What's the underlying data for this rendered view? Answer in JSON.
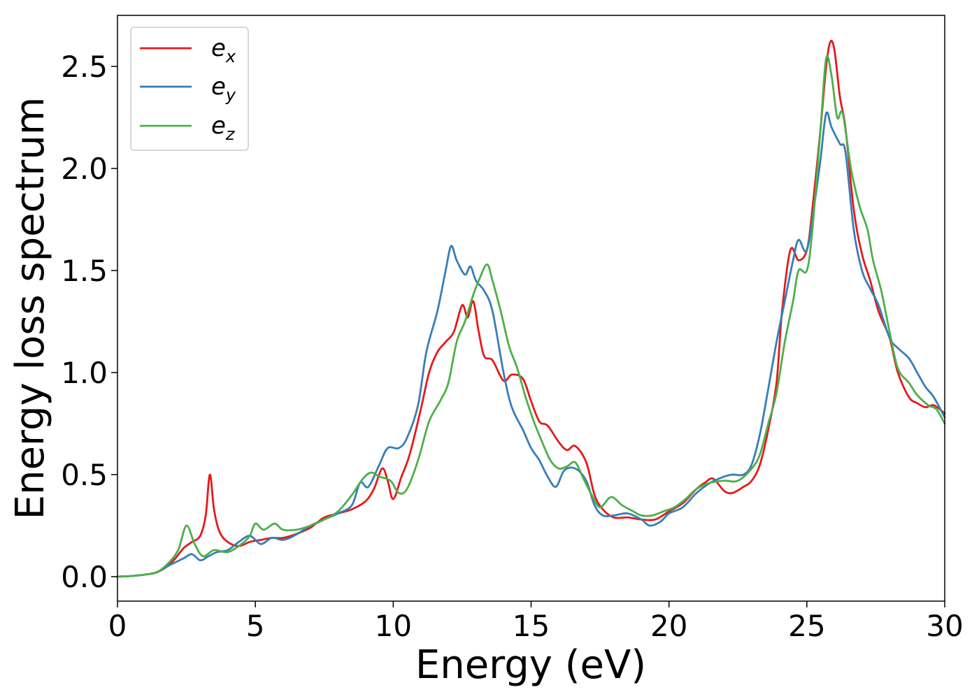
{
  "chart_data": {
    "type": "line",
    "title": "",
    "xlabel": "Energy (eV)",
    "ylabel": "Energy loss spectrum",
    "xlim": [
      0,
      30
    ],
    "ylim": [
      -0.12,
      2.75
    ],
    "xticks": [
      0,
      5,
      10,
      15,
      20,
      25,
      30
    ],
    "xtick_labels": [
      "0",
      "5",
      "10",
      "15",
      "20",
      "25",
      "30"
    ],
    "yticks": [
      0.0,
      0.5,
      1.0,
      1.5,
      2.0,
      2.5
    ],
    "ytick_labels": [
      "0.0",
      "0.5",
      "1.0",
      "1.5",
      "2.0",
      "2.5"
    ],
    "grid": false,
    "legend_position": "top-left",
    "series": [
      {
        "name": "e_x",
        "label_base": "e",
        "label_sub": "x",
        "color": "#e41a1c",
        "points": [
          [
            0,
            0
          ],
          [
            0.5,
            0.003
          ],
          [
            1,
            0.01
          ],
          [
            1.4,
            0.02
          ],
          [
            1.8,
            0.05
          ],
          [
            2.1,
            0.09
          ],
          [
            2.4,
            0.14
          ],
          [
            2.7,
            0.17
          ],
          [
            3.0,
            0.2
          ],
          [
            3.2,
            0.3
          ],
          [
            3.35,
            0.5
          ],
          [
            3.5,
            0.33
          ],
          [
            3.7,
            0.22
          ],
          [
            4.0,
            0.17
          ],
          [
            4.4,
            0.15
          ],
          [
            4.8,
            0.17
          ],
          [
            5.2,
            0.18
          ],
          [
            5.6,
            0.19
          ],
          [
            6.0,
            0.19
          ],
          [
            6.5,
            0.21
          ],
          [
            7.0,
            0.24
          ],
          [
            7.5,
            0.29
          ],
          [
            8.0,
            0.31
          ],
          [
            8.5,
            0.33
          ],
          [
            9.0,
            0.37
          ],
          [
            9.3,
            0.43
          ],
          [
            9.6,
            0.53
          ],
          [
            9.8,
            0.47
          ],
          [
            10.0,
            0.38
          ],
          [
            10.3,
            0.49
          ],
          [
            10.6,
            0.6
          ],
          [
            11.0,
            0.82
          ],
          [
            11.3,
            1.0
          ],
          [
            11.6,
            1.1
          ],
          [
            11.9,
            1.15
          ],
          [
            12.2,
            1.2
          ],
          [
            12.5,
            1.33
          ],
          [
            12.7,
            1.27
          ],
          [
            12.9,
            1.35
          ],
          [
            13.1,
            1.2
          ],
          [
            13.3,
            1.08
          ],
          [
            13.6,
            1.06
          ],
          [
            14.0,
            0.96
          ],
          [
            14.3,
            0.99
          ],
          [
            14.7,
            0.97
          ],
          [
            15.0,
            0.86
          ],
          [
            15.3,
            0.76
          ],
          [
            15.6,
            0.74
          ],
          [
            16.0,
            0.66
          ],
          [
            16.3,
            0.62
          ],
          [
            16.6,
            0.64
          ],
          [
            17.0,
            0.56
          ],
          [
            17.3,
            0.4
          ],
          [
            17.6,
            0.33
          ],
          [
            18.0,
            0.29
          ],
          [
            18.5,
            0.29
          ],
          [
            19.0,
            0.28
          ],
          [
            19.5,
            0.28
          ],
          [
            20.0,
            0.32
          ],
          [
            20.5,
            0.36
          ],
          [
            21.0,
            0.43
          ],
          [
            21.3,
            0.46
          ],
          [
            21.6,
            0.48
          ],
          [
            22.0,
            0.42
          ],
          [
            22.3,
            0.41
          ],
          [
            22.7,
            0.44
          ],
          [
            23.0,
            0.47
          ],
          [
            23.3,
            0.55
          ],
          [
            23.6,
            0.72
          ],
          [
            23.9,
            0.95
          ],
          [
            24.1,
            1.3
          ],
          [
            24.4,
            1.6
          ],
          [
            24.7,
            1.55
          ],
          [
            25.0,
            1.6
          ],
          [
            25.2,
            1.8
          ],
          [
            25.5,
            2.2
          ],
          [
            25.7,
            2.5
          ],
          [
            25.85,
            2.62
          ],
          [
            26.0,
            2.58
          ],
          [
            26.2,
            2.35
          ],
          [
            26.4,
            2.2
          ],
          [
            26.7,
            1.8
          ],
          [
            27.0,
            1.58
          ],
          [
            27.3,
            1.45
          ],
          [
            27.6,
            1.3
          ],
          [
            28.0,
            1.17
          ],
          [
            28.3,
            1.0
          ],
          [
            28.7,
            0.88
          ],
          [
            29.0,
            0.85
          ],
          [
            29.3,
            0.83
          ],
          [
            29.6,
            0.84
          ],
          [
            30.0,
            0.8
          ]
        ]
      },
      {
        "name": "e_y",
        "label_base": "e",
        "label_sub": "y",
        "color": "#377eb8",
        "points": [
          [
            0,
            0
          ],
          [
            0.5,
            0.003
          ],
          [
            1,
            0.01
          ],
          [
            1.4,
            0.02
          ],
          [
            1.8,
            0.05
          ],
          [
            2.1,
            0.07
          ],
          [
            2.4,
            0.09
          ],
          [
            2.7,
            0.11
          ],
          [
            3.0,
            0.08
          ],
          [
            3.3,
            0.1
          ],
          [
            3.6,
            0.12
          ],
          [
            4.0,
            0.13
          ],
          [
            4.4,
            0.17
          ],
          [
            4.8,
            0.2
          ],
          [
            5.2,
            0.16
          ],
          [
            5.6,
            0.19
          ],
          [
            6.0,
            0.18
          ],
          [
            6.4,
            0.2
          ],
          [
            7.0,
            0.25
          ],
          [
            7.5,
            0.28
          ],
          [
            8.0,
            0.31
          ],
          [
            8.5,
            0.35
          ],
          [
            8.8,
            0.46
          ],
          [
            9.1,
            0.44
          ],
          [
            9.5,
            0.55
          ],
          [
            9.8,
            0.63
          ],
          [
            10.2,
            0.63
          ],
          [
            10.5,
            0.68
          ],
          [
            10.9,
            0.84
          ],
          [
            11.2,
            1.1
          ],
          [
            11.6,
            1.3
          ],
          [
            11.9,
            1.5
          ],
          [
            12.1,
            1.62
          ],
          [
            12.3,
            1.55
          ],
          [
            12.6,
            1.48
          ],
          [
            12.8,
            1.52
          ],
          [
            13.0,
            1.45
          ],
          [
            13.3,
            1.4
          ],
          [
            13.6,
            1.3
          ],
          [
            14.0,
            1.0
          ],
          [
            14.3,
            0.83
          ],
          [
            14.7,
            0.72
          ],
          [
            15.0,
            0.63
          ],
          [
            15.3,
            0.57
          ],
          [
            15.6,
            0.49
          ],
          [
            15.9,
            0.44
          ],
          [
            16.2,
            0.52
          ],
          [
            16.6,
            0.53
          ],
          [
            17.0,
            0.47
          ],
          [
            17.3,
            0.35
          ],
          [
            17.6,
            0.3
          ],
          [
            18.0,
            0.3
          ],
          [
            18.5,
            0.31
          ],
          [
            19.0,
            0.28
          ],
          [
            19.3,
            0.25
          ],
          [
            19.7,
            0.27
          ],
          [
            20.0,
            0.31
          ],
          [
            20.5,
            0.34
          ],
          [
            21.0,
            0.41
          ],
          [
            21.5,
            0.46
          ],
          [
            22.0,
            0.49
          ],
          [
            22.3,
            0.5
          ],
          [
            22.7,
            0.5
          ],
          [
            23.0,
            0.55
          ],
          [
            23.3,
            0.7
          ],
          [
            23.6,
            0.92
          ],
          [
            23.9,
            1.15
          ],
          [
            24.2,
            1.35
          ],
          [
            24.5,
            1.55
          ],
          [
            24.7,
            1.65
          ],
          [
            25.0,
            1.6
          ],
          [
            25.3,
            1.85
          ],
          [
            25.5,
            2.05
          ],
          [
            25.7,
            2.27
          ],
          [
            25.9,
            2.2
          ],
          [
            26.2,
            2.12
          ],
          [
            26.4,
            2.08
          ],
          [
            26.7,
            1.7
          ],
          [
            27.0,
            1.5
          ],
          [
            27.3,
            1.41
          ],
          [
            27.6,
            1.33
          ],
          [
            28.0,
            1.17
          ],
          [
            28.3,
            1.12
          ],
          [
            28.7,
            1.07
          ],
          [
            29.0,
            1.0
          ],
          [
            29.3,
            0.93
          ],
          [
            29.6,
            0.88
          ],
          [
            30.0,
            0.78
          ]
        ]
      },
      {
        "name": "e_z",
        "label_base": "e",
        "label_sub": "z",
        "color": "#4daf4a",
        "points": [
          [
            0,
            0
          ],
          [
            0.5,
            0.003
          ],
          [
            1,
            0.01
          ],
          [
            1.4,
            0.02
          ],
          [
            1.8,
            0.06
          ],
          [
            2.2,
            0.13
          ],
          [
            2.5,
            0.25
          ],
          [
            2.8,
            0.16
          ],
          [
            3.1,
            0.1
          ],
          [
            3.5,
            0.13
          ],
          [
            4.0,
            0.12
          ],
          [
            4.5,
            0.16
          ],
          [
            4.8,
            0.2
          ],
          [
            5.0,
            0.26
          ],
          [
            5.3,
            0.23
          ],
          [
            5.7,
            0.26
          ],
          [
            6.0,
            0.23
          ],
          [
            6.5,
            0.23
          ],
          [
            7.0,
            0.25
          ],
          [
            7.5,
            0.28
          ],
          [
            8.0,
            0.32
          ],
          [
            8.5,
            0.4
          ],
          [
            8.9,
            0.48
          ],
          [
            9.2,
            0.51
          ],
          [
            9.5,
            0.49
          ],
          [
            9.9,
            0.47
          ],
          [
            10.2,
            0.41
          ],
          [
            10.5,
            0.43
          ],
          [
            10.9,
            0.57
          ],
          [
            11.3,
            0.76
          ],
          [
            11.7,
            0.86
          ],
          [
            12.0,
            0.95
          ],
          [
            12.3,
            1.15
          ],
          [
            12.6,
            1.25
          ],
          [
            12.9,
            1.38
          ],
          [
            13.1,
            1.45
          ],
          [
            13.4,
            1.53
          ],
          [
            13.6,
            1.45
          ],
          [
            13.9,
            1.3
          ],
          [
            14.2,
            1.13
          ],
          [
            14.5,
            1.02
          ],
          [
            14.8,
            0.88
          ],
          [
            15.1,
            0.76
          ],
          [
            15.4,
            0.66
          ],
          [
            15.7,
            0.57
          ],
          [
            16.0,
            0.53
          ],
          [
            16.3,
            0.54
          ],
          [
            16.6,
            0.56
          ],
          [
            16.9,
            0.48
          ],
          [
            17.2,
            0.4
          ],
          [
            17.5,
            0.34
          ],
          [
            17.9,
            0.39
          ],
          [
            18.3,
            0.35
          ],
          [
            18.7,
            0.32
          ],
          [
            19.0,
            0.3
          ],
          [
            19.4,
            0.3
          ],
          [
            19.8,
            0.32
          ],
          [
            20.2,
            0.34
          ],
          [
            20.6,
            0.38
          ],
          [
            21.0,
            0.43
          ],
          [
            21.5,
            0.46
          ],
          [
            22.0,
            0.47
          ],
          [
            22.5,
            0.47
          ],
          [
            23.0,
            0.53
          ],
          [
            23.3,
            0.6
          ],
          [
            23.6,
            0.75
          ],
          [
            23.9,
            0.9
          ],
          [
            24.2,
            1.15
          ],
          [
            24.5,
            1.35
          ],
          [
            24.7,
            1.5
          ],
          [
            25.0,
            1.5
          ],
          [
            25.2,
            1.7
          ],
          [
            25.5,
            2.2
          ],
          [
            25.7,
            2.54
          ],
          [
            25.9,
            2.45
          ],
          [
            26.1,
            2.25
          ],
          [
            26.3,
            2.27
          ],
          [
            26.6,
            2.0
          ],
          [
            26.9,
            1.82
          ],
          [
            27.2,
            1.7
          ],
          [
            27.4,
            1.55
          ],
          [
            27.7,
            1.4
          ],
          [
            28.0,
            1.2
          ],
          [
            28.3,
            1.02
          ],
          [
            28.7,
            0.95
          ],
          [
            29.0,
            0.89
          ],
          [
            29.4,
            0.84
          ],
          [
            29.7,
            0.82
          ],
          [
            30.0,
            0.75
          ]
        ]
      }
    ]
  }
}
